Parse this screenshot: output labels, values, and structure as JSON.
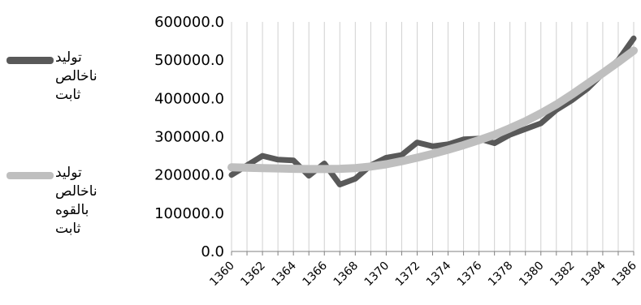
{
  "chart_data": {
    "type": "line",
    "x": [
      1360,
      1361,
      1362,
      1363,
      1364,
      1365,
      1366,
      1367,
      1368,
      1369,
      1370,
      1371,
      1372,
      1373,
      1374,
      1375,
      1376,
      1377,
      1378,
      1379,
      1380,
      1381,
      1382,
      1383,
      1384,
      1385,
      1386
    ],
    "x_tick_labels": [
      "1360",
      "1362",
      "1364",
      "1366",
      "1368",
      "1370",
      "1372",
      "1374",
      "1376",
      "1378",
      "1380",
      "1382",
      "1384",
      "1386"
    ],
    "y_tick_labels": [
      "0.0",
      "100000.0",
      "200000.0",
      "300000.0",
      "400000.0",
      "500000.0",
      "600000.0"
    ],
    "ylim": [
      0,
      600000
    ],
    "grid": "vertical",
    "legend_position": "left",
    "series": [
      {
        "name": "تولید ناخالص ثابت",
        "color": "#595959",
        "values": [
          200000,
          225000,
          250000,
          240000,
          238000,
          198000,
          230000,
          175000,
          190000,
          225000,
          245000,
          252000,
          285000,
          275000,
          280000,
          293000,
          295000,
          283000,
          305000,
          320000,
          335000,
          370000,
          395000,
          425000,
          465000,
          500000,
          557000
        ]
      },
      {
        "name": "تولید ناخالص بالقوه ثابت",
        "color": "#bfbfbf",
        "values": [
          220000,
          219000,
          218000,
          217000,
          216000,
          215500,
          215500,
          216000,
          218000,
          222000,
          228000,
          236000,
          245000,
          255000,
          266000,
          278000,
          291000,
          305000,
          322000,
          340000,
          361000,
          384000,
          410000,
          438000,
          466000,
          495000,
          525000
        ]
      }
    ]
  }
}
